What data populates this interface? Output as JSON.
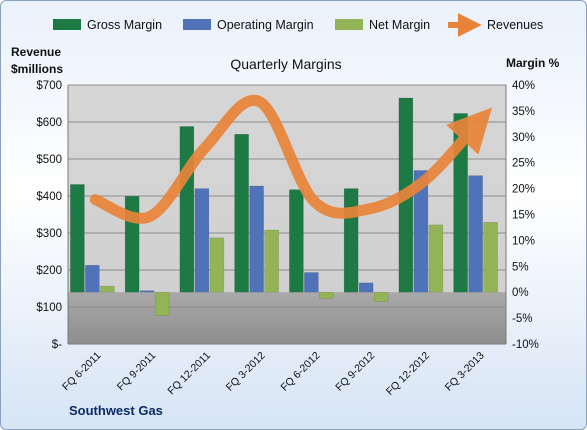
{
  "chart_data": {
    "type": "bar",
    "title": "Quarterly Margins",
    "company": "Southwest Gas",
    "categories": [
      "FQ 6-2011",
      "FQ 9-2011",
      "FQ 12-2011",
      "FQ 3-2012",
      "FQ 6-2012",
      "FQ 9-2012",
      "FQ 12-2012",
      "FQ 3-2013"
    ],
    "left_axis": {
      "label_line1": "Revenue",
      "label_line2": "$millions",
      "range": [
        0,
        700
      ],
      "ticks": [
        0,
        100,
        200,
        300,
        400,
        500,
        600,
        700
      ],
      "tick_labels": [
        "$-",
        "$100",
        "$200",
        "$300",
        "$400",
        "$500",
        "$600",
        "$700"
      ]
    },
    "right_axis": {
      "label": "Margin %",
      "range": [
        -10,
        40
      ],
      "ticks": [
        -10,
        -5,
        0,
        5,
        10,
        15,
        20,
        25,
        30,
        35,
        40
      ],
      "tick_labels": [
        "-10%",
        "-5%",
        "0%",
        "5%",
        "10%",
        "15%",
        "20%",
        "25%",
        "30%",
        "35%",
        "40%"
      ]
    },
    "series": [
      {
        "name": "Gross Margin",
        "type": "bar",
        "axis": "right",
        "color": "#1e7a45",
        "values": [
          20.8,
          18.5,
          32.0,
          30.5,
          19.8,
          20.0,
          37.5,
          34.5
        ]
      },
      {
        "name": "Operating Margin",
        "type": "bar",
        "axis": "right",
        "color": "#4f72b8",
        "values": [
          5.2,
          0.3,
          20.0,
          20.5,
          3.8,
          1.8,
          23.5,
          22.5
        ]
      },
      {
        "name": "Net Margin",
        "type": "bar",
        "axis": "right",
        "color": "#93b357",
        "values": [
          1.2,
          -4.5,
          10.5,
          12.0,
          -1.2,
          -1.8,
          13.0,
          13.5
        ]
      },
      {
        "name": "Revenues",
        "type": "line",
        "axis": "left",
        "color": "#e8843a",
        "values": [
          390,
          345,
          530,
          655,
          385,
          365,
          440,
          600
        ]
      }
    ],
    "grid": true,
    "legend_position": "top"
  }
}
